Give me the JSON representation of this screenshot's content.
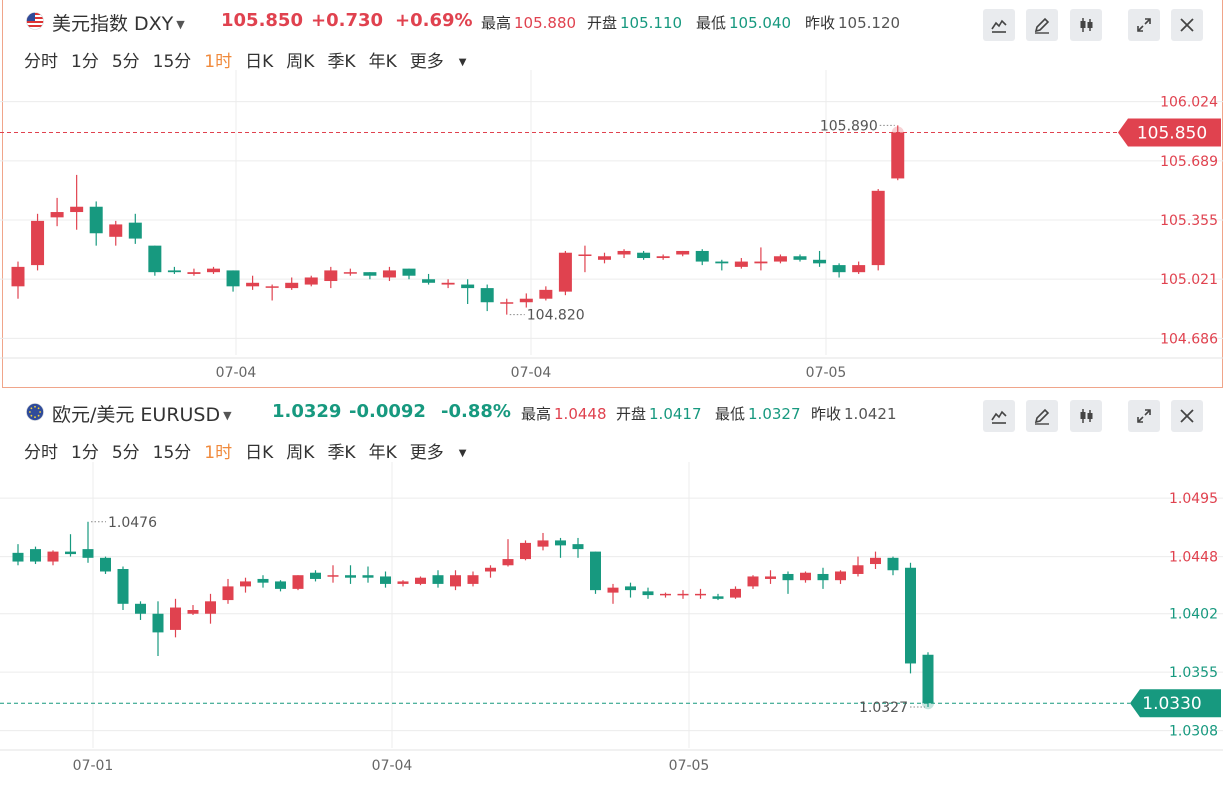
{
  "colors": {
    "up": "#e0424f",
    "down": "#17997f",
    "grid": "#ececec",
    "active_tab": "#f08a3c",
    "border": "#f0a58a"
  },
  "tabs": [
    "分时",
    "1分",
    "5分",
    "15分",
    "1时",
    "日K",
    "周K",
    "季K",
    "年K",
    "更多"
  ],
  "active_tab": "1时",
  "toolbar_icons": [
    "line-chart-icon",
    "pen-icon",
    "candlestick-icon",
    "expand-icon",
    "close-icon"
  ],
  "dxy": {
    "flag": "us-flag-icon",
    "name": "美元指数",
    "symbol": "DXY",
    "price": "105.850",
    "change": "+0.730",
    "change_pct": "+0.69%",
    "high_label": "最高",
    "high": "105.880",
    "open_label": "开盘",
    "open": "105.110",
    "low_label": "最低",
    "low": "105.040",
    "prev_label": "昨收",
    "prev": "105.120"
  },
  "eur": {
    "flag": "eu-flag-icon",
    "name": "欧元/美元",
    "symbol": "EURUSD",
    "price": "1.0329",
    "change": "-0.0092",
    "change_pct": "-0.88%",
    "high_label": "最高",
    "high": "1.0448",
    "open_label": "开盘",
    "open": "1.0417",
    "low_label": "最低",
    "low": "1.0327",
    "prev_label": "昨收",
    "prev": "1.0421"
  },
  "chart_data": [
    {
      "type": "candlestick",
      "title": "美元指数 DXY",
      "interval": "1时",
      "x_labels": [
        "07-04",
        "07-04",
        "07-05"
      ],
      "y_ticks": [
        "106.024",
        "105.689",
        "105.355",
        "105.021",
        "104.686"
      ],
      "ylim": [
        104.62,
        106.09
      ],
      "current_price_tag": "105.850",
      "current_price": 105.85,
      "max_annotation": "105.890",
      "min_annotation": "104.820",
      "candles": [
        {
          "o": 104.98,
          "h": 105.12,
          "l": 104.91,
          "c": 105.09
        },
        {
          "o": 105.1,
          "h": 105.39,
          "l": 105.07,
          "c": 105.35
        },
        {
          "o": 105.37,
          "h": 105.48,
          "l": 105.32,
          "c": 105.4
        },
        {
          "o": 105.4,
          "h": 105.61,
          "l": 105.3,
          "c": 105.43
        },
        {
          "o": 105.43,
          "h": 105.46,
          "l": 105.21,
          "c": 105.28
        },
        {
          "o": 105.26,
          "h": 105.35,
          "l": 105.21,
          "c": 105.33
        },
        {
          "o": 105.34,
          "h": 105.39,
          "l": 105.22,
          "c": 105.25
        },
        {
          "o": 105.21,
          "h": 105.21,
          "l": 105.04,
          "c": 105.06
        },
        {
          "o": 105.07,
          "h": 105.09,
          "l": 105.05,
          "c": 105.06
        },
        {
          "o": 105.05,
          "h": 105.08,
          "l": 105.04,
          "c": 105.06
        },
        {
          "o": 105.06,
          "h": 105.09,
          "l": 105.05,
          "c": 105.08
        },
        {
          "o": 105.07,
          "h": 105.07,
          "l": 104.95,
          "c": 104.98
        },
        {
          "o": 104.98,
          "h": 105.04,
          "l": 104.96,
          "c": 105.0
        },
        {
          "o": 104.98,
          "h": 104.99,
          "l": 104.9,
          "c": 104.98
        },
        {
          "o": 104.97,
          "h": 105.03,
          "l": 104.96,
          "c": 105.0
        },
        {
          "o": 104.99,
          "h": 105.04,
          "l": 104.98,
          "c": 105.03
        },
        {
          "o": 105.01,
          "h": 105.09,
          "l": 104.97,
          "c": 105.07
        },
        {
          "o": 105.06,
          "h": 105.08,
          "l": 105.04,
          "c": 105.06
        },
        {
          "o": 105.06,
          "h": 105.06,
          "l": 105.02,
          "c": 105.04
        },
        {
          "o": 105.03,
          "h": 105.09,
          "l": 105.01,
          "c": 105.07
        },
        {
          "o": 105.08,
          "h": 105.08,
          "l": 105.02,
          "c": 105.04
        },
        {
          "o": 105.02,
          "h": 105.05,
          "l": 104.99,
          "c": 105.0
        },
        {
          "o": 104.99,
          "h": 105.02,
          "l": 104.97,
          "c": 105.0
        },
        {
          "o": 104.99,
          "h": 105.02,
          "l": 104.88,
          "c": 104.97
        },
        {
          "o": 104.97,
          "h": 104.99,
          "l": 104.84,
          "c": 104.89
        },
        {
          "o": 104.89,
          "h": 104.91,
          "l": 104.82,
          "c": 104.89
        },
        {
          "o": 104.89,
          "h": 104.94,
          "l": 104.86,
          "c": 104.91
        },
        {
          "o": 104.91,
          "h": 104.98,
          "l": 104.9,
          "c": 104.96
        },
        {
          "o": 104.95,
          "h": 105.18,
          "l": 104.93,
          "c": 105.17
        },
        {
          "o": 105.16,
          "h": 105.21,
          "l": 105.06,
          "c": 105.16
        },
        {
          "o": 105.13,
          "h": 105.17,
          "l": 105.11,
          "c": 105.15
        },
        {
          "o": 105.16,
          "h": 105.19,
          "l": 105.14,
          "c": 105.18
        },
        {
          "o": 105.17,
          "h": 105.18,
          "l": 105.13,
          "c": 105.14
        },
        {
          "o": 105.14,
          "h": 105.16,
          "l": 105.13,
          "c": 105.15
        },
        {
          "o": 105.16,
          "h": 105.18,
          "l": 105.15,
          "c": 105.18
        },
        {
          "o": 105.18,
          "h": 105.19,
          "l": 105.1,
          "c": 105.12
        },
        {
          "o": 105.12,
          "h": 105.13,
          "l": 105.07,
          "c": 105.11
        },
        {
          "o": 105.09,
          "h": 105.14,
          "l": 105.08,
          "c": 105.12
        },
        {
          "o": 105.11,
          "h": 105.2,
          "l": 105.07,
          "c": 105.12
        },
        {
          "o": 105.12,
          "h": 105.16,
          "l": 105.11,
          "c": 105.15
        },
        {
          "o": 105.15,
          "h": 105.16,
          "l": 105.12,
          "c": 105.13
        },
        {
          "o": 105.13,
          "h": 105.18,
          "l": 105.09,
          "c": 105.11
        },
        {
          "o": 105.1,
          "h": 105.11,
          "l": 105.03,
          "c": 105.06
        },
        {
          "o": 105.06,
          "h": 105.12,
          "l": 105.05,
          "c": 105.1
        },
        {
          "o": 105.1,
          "h": 105.53,
          "l": 105.07,
          "c": 105.52
        },
        {
          "o": 105.59,
          "h": 105.89,
          "l": 105.58,
          "c": 105.85
        }
      ]
    },
    {
      "type": "candlestick",
      "title": "欧元/美元 EURUSD",
      "interval": "1时",
      "x_labels": [
        "07-01",
        "07-04",
        "07-05"
      ],
      "y_ticks": [
        "1.0495",
        "1.0448",
        "1.0402",
        "1.0355",
        "1.0308"
      ],
      "ylim": [
        1.0298,
        1.0508
      ],
      "current_price_tag": "1.0330",
      "current_price": 1.033,
      "max_annotation": "1.0476",
      "min_annotation": "1.0327",
      "candles": [
        {
          "o": 1.0451,
          "h": 1.0458,
          "l": 1.0441,
          "c": 1.0444
        },
        {
          "o": 1.0454,
          "h": 1.0456,
          "l": 1.0442,
          "c": 1.0444
        },
        {
          "o": 1.0444,
          "h": 1.0453,
          "l": 1.0441,
          "c": 1.0452
        },
        {
          "o": 1.0452,
          "h": 1.0466,
          "l": 1.0448,
          "c": 1.045
        },
        {
          "o": 1.0454,
          "h": 1.0476,
          "l": 1.0443,
          "c": 1.0447
        },
        {
          "o": 1.0447,
          "h": 1.0448,
          "l": 1.0434,
          "c": 1.0436
        },
        {
          "o": 1.0438,
          "h": 1.044,
          "l": 1.0405,
          "c": 1.041
        },
        {
          "o": 1.041,
          "h": 1.0412,
          "l": 1.0397,
          "c": 1.0402
        },
        {
          "o": 1.0402,
          "h": 1.0412,
          "l": 1.0368,
          "c": 1.0387
        },
        {
          "o": 1.0389,
          "h": 1.0414,
          "l": 1.0383,
          "c": 1.0407
        },
        {
          "o": 1.0402,
          "h": 1.0409,
          "l": 1.0401,
          "c": 1.0405
        },
        {
          "o": 1.0402,
          "h": 1.0418,
          "l": 1.0394,
          "c": 1.0412
        },
        {
          "o": 1.0413,
          "h": 1.043,
          "l": 1.041,
          "c": 1.0424
        },
        {
          "o": 1.0424,
          "h": 1.0431,
          "l": 1.0419,
          "c": 1.0428
        },
        {
          "o": 1.043,
          "h": 1.0433,
          "l": 1.0423,
          "c": 1.0427
        },
        {
          "o": 1.0428,
          "h": 1.0429,
          "l": 1.042,
          "c": 1.0422
        },
        {
          "o": 1.0422,
          "h": 1.0433,
          "l": 1.0421,
          "c": 1.0433
        },
        {
          "o": 1.0435,
          "h": 1.0437,
          "l": 1.0428,
          "c": 1.043
        },
        {
          "o": 1.0432,
          "h": 1.0441,
          "l": 1.0427,
          "c": 1.0433
        },
        {
          "o": 1.0433,
          "h": 1.0441,
          "l": 1.0426,
          "c": 1.0431
        },
        {
          "o": 1.0433,
          "h": 1.044,
          "l": 1.0427,
          "c": 1.0431
        },
        {
          "o": 1.0432,
          "h": 1.0436,
          "l": 1.0423,
          "c": 1.0426
        },
        {
          "o": 1.0426,
          "h": 1.0429,
          "l": 1.0424,
          "c": 1.0428
        },
        {
          "o": 1.0426,
          "h": 1.0432,
          "l": 1.0425,
          "c": 1.0431
        },
        {
          "o": 1.0433,
          "h": 1.0437,
          "l": 1.0423,
          "c": 1.0426
        },
        {
          "o": 1.0424,
          "h": 1.0437,
          "l": 1.0421,
          "c": 1.0433
        },
        {
          "o": 1.0426,
          "h": 1.0436,
          "l": 1.0424,
          "c": 1.0433
        },
        {
          "o": 1.0436,
          "h": 1.0441,
          "l": 1.0431,
          "c": 1.0439
        },
        {
          "o": 1.0441,
          "h": 1.0462,
          "l": 1.044,
          "c": 1.0446
        },
        {
          "o": 1.0446,
          "h": 1.0461,
          "l": 1.0445,
          "c": 1.0459
        },
        {
          "o": 1.0456,
          "h": 1.0467,
          "l": 1.0453,
          "c": 1.0461
        },
        {
          "o": 1.0461,
          "h": 1.0463,
          "l": 1.0447,
          "c": 1.0457
        },
        {
          "o": 1.0458,
          "h": 1.0463,
          "l": 1.0447,
          "c": 1.0454
        },
        {
          "o": 1.0452,
          "h": 1.0452,
          "l": 1.0418,
          "c": 1.0421
        },
        {
          "o": 1.0419,
          "h": 1.0426,
          "l": 1.041,
          "c": 1.0423
        },
        {
          "o": 1.0424,
          "h": 1.0427,
          "l": 1.0415,
          "c": 1.0421
        },
        {
          "o": 1.042,
          "h": 1.0423,
          "l": 1.0414,
          "c": 1.0417
        },
        {
          "o": 1.0418,
          "h": 1.0419,
          "l": 1.0415,
          "c": 1.0418
        },
        {
          "o": 1.0418,
          "h": 1.0421,
          "l": 1.0414,
          "c": 1.0418
        },
        {
          "o": 1.0418,
          "h": 1.0422,
          "l": 1.0414,
          "c": 1.0418
        },
        {
          "o": 1.0416,
          "h": 1.0418,
          "l": 1.0413,
          "c": 1.0414
        },
        {
          "o": 1.0415,
          "h": 1.0424,
          "l": 1.0414,
          "c": 1.0422
        },
        {
          "o": 1.0424,
          "h": 1.0433,
          "l": 1.0422,
          "c": 1.0432
        },
        {
          "o": 1.043,
          "h": 1.0437,
          "l": 1.0426,
          "c": 1.0432
        },
        {
          "o": 1.0434,
          "h": 1.0436,
          "l": 1.0418,
          "c": 1.0429
        },
        {
          "o": 1.0429,
          "h": 1.0436,
          "l": 1.0427,
          "c": 1.0435
        },
        {
          "o": 1.0434,
          "h": 1.0439,
          "l": 1.0422,
          "c": 1.0429
        },
        {
          "o": 1.0429,
          "h": 1.0437,
          "l": 1.0426,
          "c": 1.0436
        },
        {
          "o": 1.0434,
          "h": 1.0448,
          "l": 1.0432,
          "c": 1.0441
        },
        {
          "o": 1.0442,
          "h": 1.0452,
          "l": 1.0438,
          "c": 1.0447
        },
        {
          "o": 1.0447,
          "h": 1.0448,
          "l": 1.0433,
          "c": 1.0437
        },
        {
          "o": 1.0439,
          "h": 1.0443,
          "l": 1.0354,
          "c": 1.0362
        },
        {
          "o": 1.0369,
          "h": 1.0371,
          "l": 1.0327,
          "c": 1.033
        }
      ]
    }
  ]
}
